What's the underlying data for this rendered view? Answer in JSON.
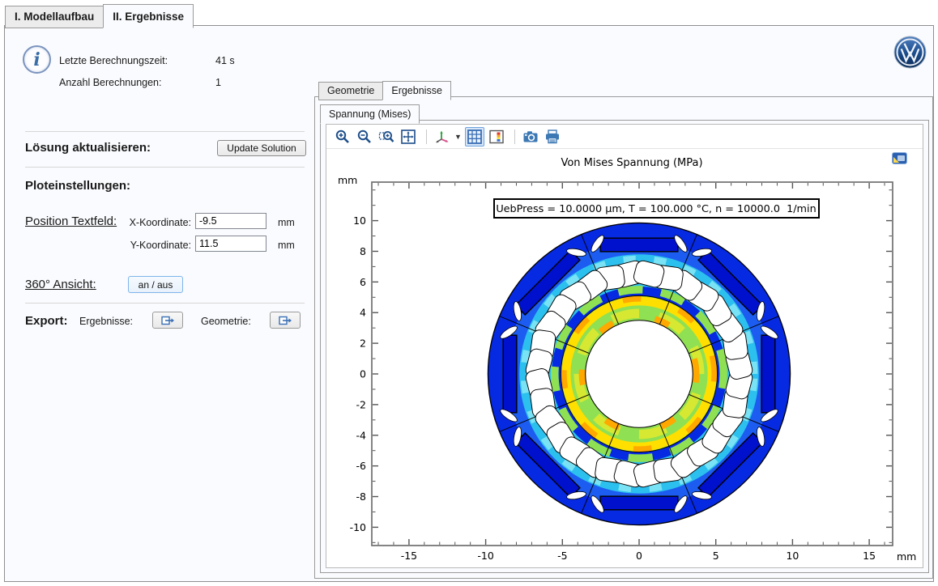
{
  "window_tabs": {
    "model": "I. Modellaufbau",
    "results": "II. Ergebnisse"
  },
  "info": {
    "last_time_label": "Letzte Berechnungszeit:",
    "last_time_value": "41 s",
    "count_label": "Anzahl Berechnungen:",
    "count_value": "1"
  },
  "solution": {
    "heading": "Lösung aktualisieren:",
    "button": "Update Solution"
  },
  "plot_settings": {
    "heading": "Ploteinstellungen:",
    "position_label": "Position Textfeld:",
    "x_label": "X-Koordinate:",
    "x_value": "-9.5",
    "x_unit": "mm",
    "y_label": "Y-Koordinate:",
    "y_value": "11.5",
    "y_unit": "mm"
  },
  "view360": {
    "label": "360° Ansicht:",
    "button": "an / aus"
  },
  "export": {
    "heading": "Export:",
    "results_label": "Ergebnisse:",
    "geometry_label": "Geometrie:"
  },
  "right_panel": {
    "tab_geometry": "Geometrie",
    "tab_results": "Ergebnisse",
    "plot_tab": "Spannung (Mises)",
    "toolbar": [
      "zoom-in",
      "zoom-out",
      "zoom-box",
      "zoom-extents",
      "view-orientation",
      "grid",
      "color-legend",
      "snapshot",
      "print"
    ]
  },
  "brand": {
    "logo": "VW"
  },
  "chart_data": {
    "type": "heatmap",
    "title": "Von Mises Spannung (MPa)",
    "annotation": "UebPress = 10.0000 µm, T = 100.000 °C, n = 10000.0  1/min",
    "x_unit": "mm",
    "y_unit": "mm",
    "x_ticks": [
      -15,
      -10,
      -5,
      0,
      5,
      10,
      15
    ],
    "y_ticks": [
      -10,
      -8,
      -6,
      -4,
      -2,
      0,
      2,
      4,
      6,
      8,
      10
    ],
    "x_range": [
      -17.4,
      16.5
    ],
    "y_range": [
      -11.2,
      12.5
    ],
    "minor_tick_step": 1,
    "grid": false,
    "legend": "hidden",
    "colormap": "rainbow",
    "description": "2D FEM von-Mises stress surface plot of an 8-pole interior-PM rotor lamination: deep blue (low stress) body with 8 rectangular magnet slots, ring of 32 rounded cooling holes, 16 white flux-barrier cutouts, white shaft bore; yellow/orange (high stress) ring around the bore, cyan/green transition band across the hole ring",
    "geometry": {
      "units": "mm",
      "outer_radius": 9.85,
      "bore_radius": 3.5,
      "ring_circle_radius": 5.1,
      "sector_line_count": 8,
      "sector_line_offset_deg": 22.5,
      "magnet_count": 8,
      "magnet_width": 5.05,
      "magnet_thickness": 0.88,
      "magnet_center_radius": 8.42,
      "hole_count": 32,
      "hole_ring_radius": 6.55,
      "hole_width": 1.85,
      "hole_height": 1.5,
      "wedge_count": 16,
      "wedge_radius": 8.92
    },
    "palette": {
      "deep_blue": "#0629e2",
      "magnet_blue": "#0011cd",
      "light_blue": "#1d5cf0",
      "cyan": "#2cc0ee",
      "pale_cyan": "#79e2f4",
      "green": "#8fe052",
      "yellow_green": "#d6e832",
      "yellow": "#ffdf00",
      "orange": "#ffa800"
    }
  }
}
